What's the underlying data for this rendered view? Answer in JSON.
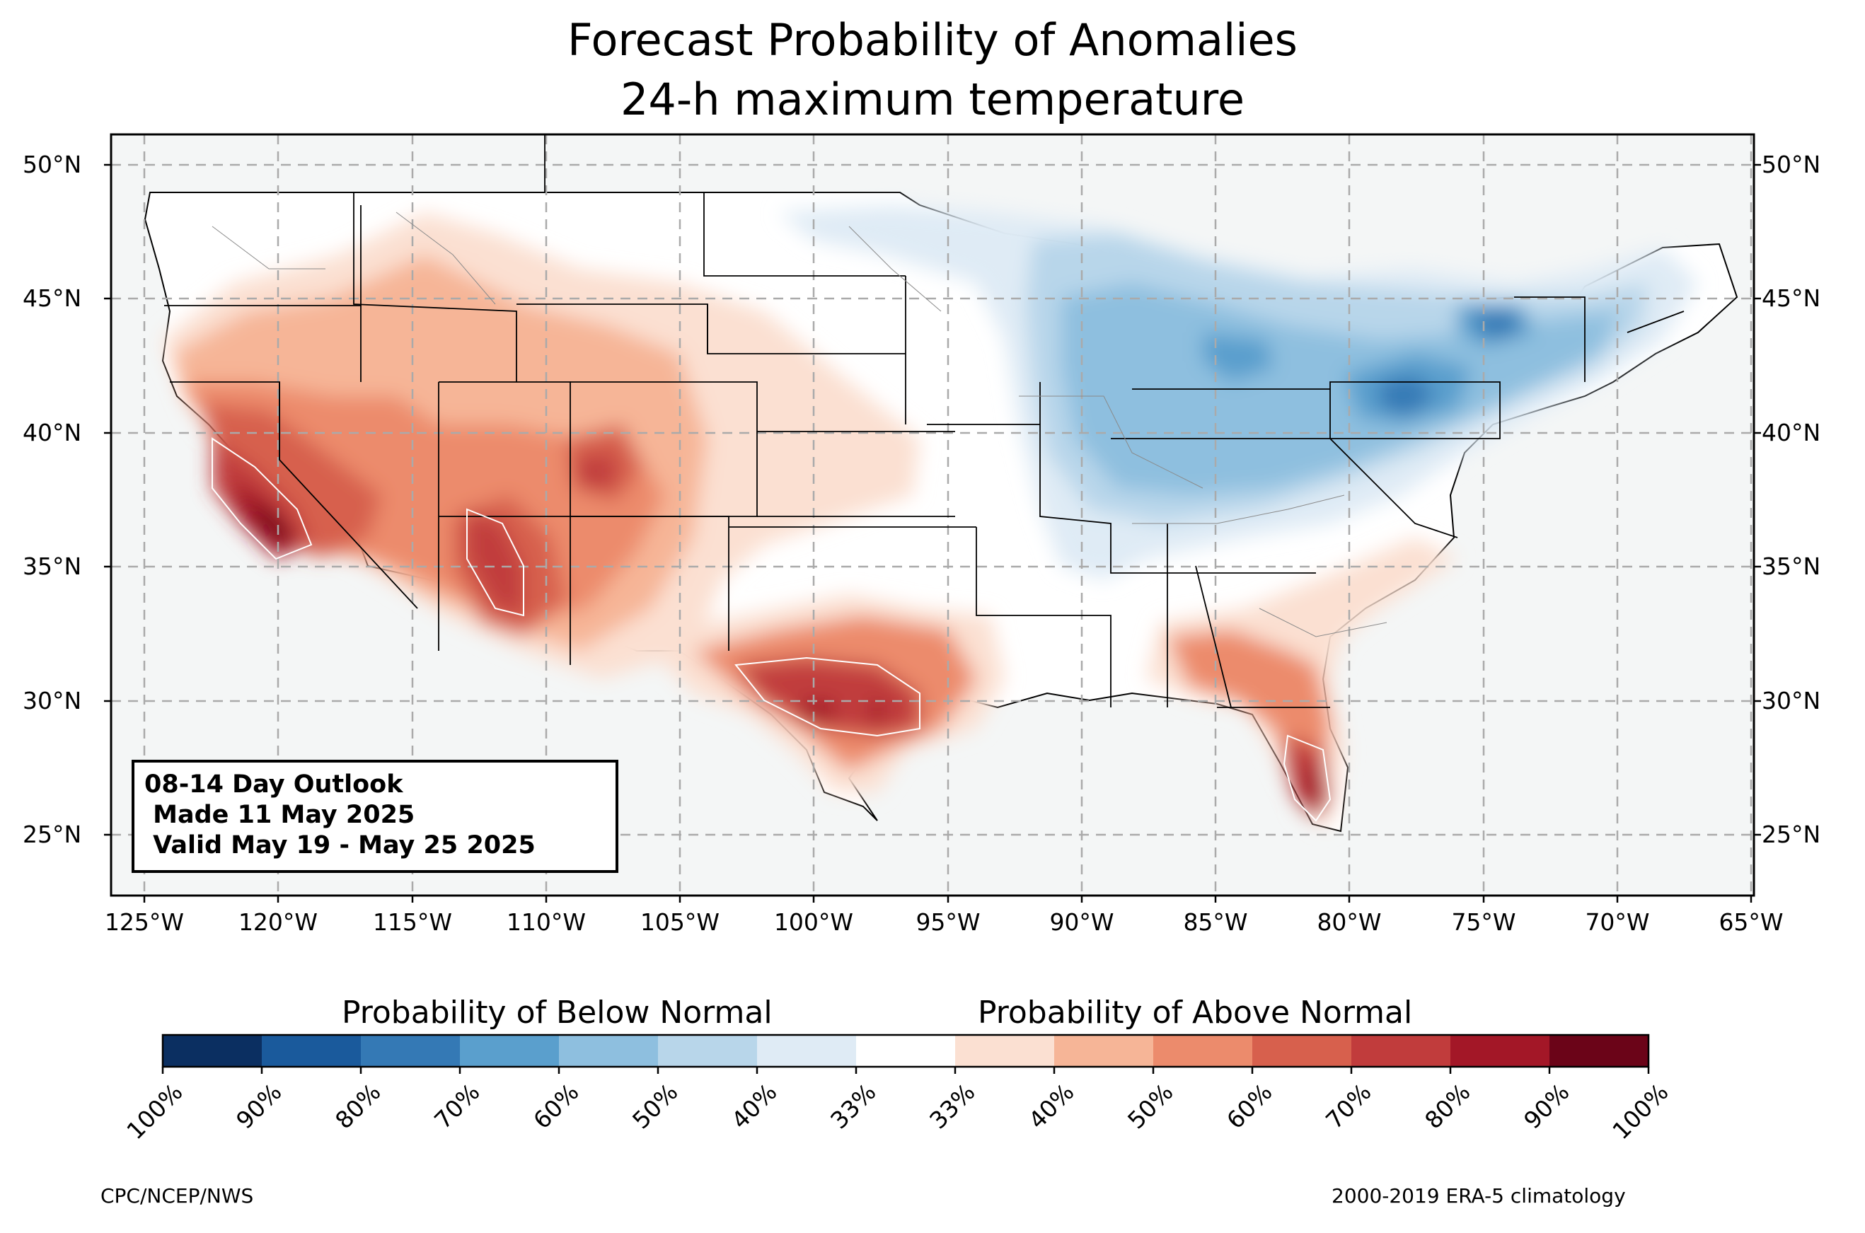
{
  "title": "Forecast Probability of Anomalies",
  "subtitle": "24-h maximum temperature",
  "lat_labels": [
    "50°N",
    "45°N",
    "40°N",
    "35°N",
    "30°N",
    "25°N"
  ],
  "lon_labels": [
    "125°W",
    "120°W",
    "115°W",
    "110°W",
    "105°W",
    "100°W",
    "95°W",
    "90°W",
    "85°W",
    "80°W",
    "75°W",
    "70°W",
    "65°W"
  ],
  "outlook": {
    "line1": "08-14 Day Outlook",
    "line2": " Made 11 May 2025",
    "line3": " Valid May 19 - May 25 2025"
  },
  "colorbar": {
    "below_label": "Probability of Below Normal",
    "above_label": "Probability of Above Normal",
    "ticks": [
      "100%",
      "90%",
      "80%",
      "70%",
      "60%",
      "50%",
      "40%",
      "33%",
      "33%",
      "40%",
      "50%",
      "60%",
      "70%",
      "80%",
      "90%",
      "100%"
    ],
    "colors": [
      "#0b2f61",
      "#1a5a9c",
      "#3479b5",
      "#5a9fcd",
      "#8ebfdf",
      "#b8d6ea",
      "#dfebf5",
      "#ffffff",
      "#fbe0d2",
      "#f6b597",
      "#ec8b6c",
      "#d7604d",
      "#c13c3c",
      "#a31727",
      "#6b0418"
    ]
  },
  "footer": {
    "left": "CPC/NCEP/NWS",
    "right": "2000-2019 ERA-5 climatology"
  }
}
